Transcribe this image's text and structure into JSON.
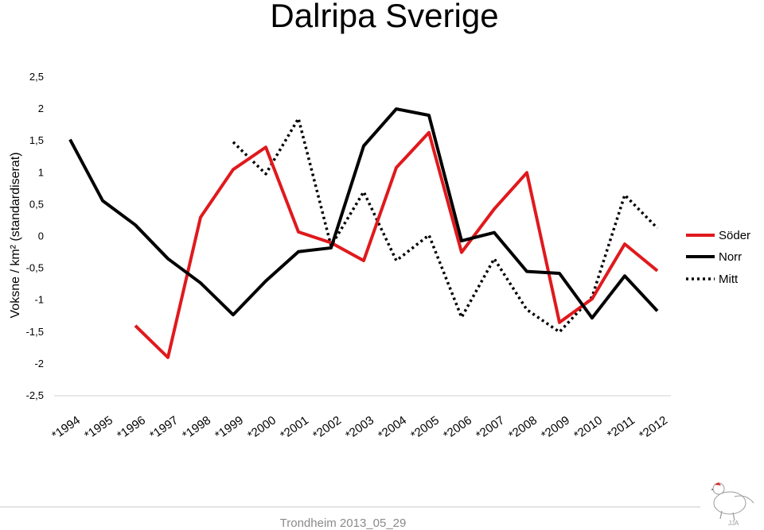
{
  "slide": {
    "footer": "Trondheim 2013_05_29",
    "bird_mark": "JJA"
  },
  "colors": {
    "soder": "#e0191d",
    "norr": "#000000",
    "mitt": "#000000"
  },
  "icons": {
    "logo": "ptarmigan-bird-logo"
  },
  "chart_data": {
    "type": "line",
    "title": "Dalripa Sverige",
    "xlabel": "",
    "ylabel": "Voksne / km² (standardiserat)",
    "categories": [
      "*1994",
      "*1995",
      "*1996",
      "*1997",
      "*1998",
      "*1999",
      "*2000",
      "*2001",
      "*2002",
      "*2003",
      "*2004",
      "*2005",
      "*2006",
      "*2007",
      "*2008",
      "*2009",
      "*2010",
      "*2011",
      "*2012"
    ],
    "ylim": [
      -2.5,
      2.5
    ],
    "yticks": [
      "2,5",
      "2",
      "1,5",
      "1",
      "0,5",
      "0",
      "-0,5",
      "-1",
      "-1,5",
      "-2",
      "-2,5"
    ],
    "grid": false,
    "legend_position": "right",
    "series": [
      {
        "name": "Söder",
        "style": "solid",
        "values": [
          null,
          null,
          -1.4,
          -1.9,
          0.3,
          1.05,
          1.4,
          0.07,
          -0.1,
          -0.38,
          1.08,
          1.63,
          -0.25,
          0.43,
          1.0,
          -1.35,
          -0.98,
          -0.12,
          -0.54
        ]
      },
      {
        "name": "Norr",
        "style": "solid",
        "values": [
          1.52,
          0.56,
          0.18,
          -0.35,
          -0.73,
          -1.23,
          -0.7,
          -0.24,
          -0.18,
          1.42,
          2.0,
          1.9,
          -0.07,
          0.06,
          -0.55,
          -0.58,
          -1.28,
          -0.62,
          -1.17
        ]
      },
      {
        "name": "Mitt",
        "style": "dotted",
        "values": [
          null,
          null,
          null,
          null,
          null,
          1.48,
          0.98,
          1.85,
          -0.15,
          0.7,
          -0.38,
          0.02,
          -1.27,
          -0.35,
          -1.15,
          -1.5,
          -0.95,
          0.65,
          0.13
        ]
      }
    ]
  }
}
